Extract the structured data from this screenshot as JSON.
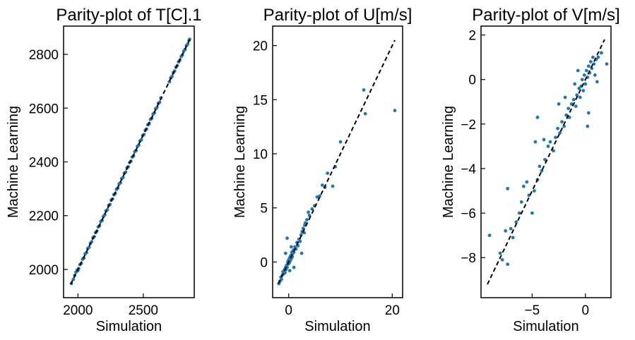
{
  "chart_data": [
    {
      "type": "scatter",
      "title": "Parity-plot of T[C].1",
      "xlabel": "Simulation",
      "ylabel": "Machine Learning",
      "xlim": [
        1890,
        2890
      ],
      "ylim": [
        1895,
        2905
      ],
      "xticks": [
        {
          "v": 2000,
          "label": "2000"
        },
        {
          "v": 2500,
          "label": "2500"
        }
      ],
      "yticks": [
        {
          "v": 2000,
          "label": "2000"
        },
        {
          "v": 2200,
          "label": "2200"
        },
        {
          "v": 2400,
          "label": "2400"
        },
        {
          "v": 2600,
          "label": "2600"
        },
        {
          "v": 2800,
          "label": "2800"
        }
      ],
      "reference_line": {
        "x": [
          1945,
          2855
        ],
        "y": [
          1945,
          2855
        ],
        "style": "dashed",
        "color": "#000000"
      },
      "marker_color": "#1f77b4",
      "points": [
        [
          1950,
          1948
        ],
        [
          1965,
          1963
        ],
        [
          1975,
          1978
        ],
        [
          1985,
          1990
        ],
        [
          1995,
          1998
        ],
        [
          2000,
          1996
        ],
        [
          2005,
          2003
        ],
        [
          2015,
          2018
        ],
        [
          2025,
          2022
        ],
        [
          2035,
          2038
        ],
        [
          2045,
          2042
        ],
        [
          2055,
          2058
        ],
        [
          2065,
          2062
        ],
        [
          2075,
          2078
        ],
        [
          2085,
          2082
        ],
        [
          2095,
          2097
        ],
        [
          2105,
          2103
        ],
        [
          2115,
          2118
        ],
        [
          2125,
          2122
        ],
        [
          2135,
          2137
        ],
        [
          2145,
          2142
        ],
        [
          2155,
          2158
        ],
        [
          2165,
          2162
        ],
        [
          2175,
          2178
        ],
        [
          2185,
          2182
        ],
        [
          2195,
          2197
        ],
        [
          2205,
          2203
        ],
        [
          2215,
          2218
        ],
        [
          2225,
          2222
        ],
        [
          2235,
          2238
        ],
        [
          2245,
          2242
        ],
        [
          2255,
          2258
        ],
        [
          2265,
          2262
        ],
        [
          2275,
          2278
        ],
        [
          2285,
          2282
        ],
        [
          2295,
          2298
        ],
        [
          2305,
          2302
        ],
        [
          2315,
          2318
        ],
        [
          2325,
          2322
        ],
        [
          2335,
          2338
        ],
        [
          2345,
          2342
        ],
        [
          2355,
          2358
        ],
        [
          2365,
          2362
        ],
        [
          2375,
          2378
        ],
        [
          2385,
          2382
        ],
        [
          2395,
          2398
        ],
        [
          2405,
          2402
        ],
        [
          2415,
          2418
        ],
        [
          2425,
          2422
        ],
        [
          2435,
          2438
        ],
        [
          2445,
          2442
        ],
        [
          2455,
          2458
        ],
        [
          2465,
          2462
        ],
        [
          2475,
          2478
        ],
        [
          2485,
          2482
        ],
        [
          2495,
          2498
        ],
        [
          2505,
          2502
        ],
        [
          2515,
          2518
        ],
        [
          2525,
          2522
        ],
        [
          2535,
          2538
        ],
        [
          2545,
          2542
        ],
        [
          2555,
          2558
        ],
        [
          2565,
          2562
        ],
        [
          2575,
          2578
        ],
        [
          2585,
          2582
        ],
        [
          2595,
          2598
        ],
        [
          2605,
          2602
        ],
        [
          2615,
          2618
        ],
        [
          2625,
          2622
        ],
        [
          2635,
          2638
        ],
        [
          2700,
          2698
        ],
        [
          2710,
          2712
        ],
        [
          2720,
          2718
        ],
        [
          2730,
          2732
        ],
        [
          2740,
          2738
        ],
        [
          2750,
          2752
        ],
        [
          2760,
          2758
        ],
        [
          2770,
          2772
        ],
        [
          2780,
          2778
        ],
        [
          2790,
          2792
        ],
        [
          2800,
          2798
        ],
        [
          2810,
          2812
        ],
        [
          2820,
          2818
        ],
        [
          2830,
          2832
        ],
        [
          2840,
          2838
        ],
        [
          2850,
          2852
        ],
        [
          2855,
          2856
        ]
      ]
    },
    {
      "type": "scatter",
      "title": "Parity-plot of U[m/s]",
      "xlabel": "Simulation",
      "ylabel": "Machine Learning",
      "xlim": [
        -3.1,
        22.0
      ],
      "ylim": [
        -3.3,
        21.8
      ],
      "xticks": [
        {
          "v": 0,
          "label": "0"
        },
        {
          "v": 20,
          "label": "20"
        }
      ],
      "yticks": [
        {
          "v": 0,
          "label": "0"
        },
        {
          "v": 5,
          "label": "5"
        },
        {
          "v": 10,
          "label": "10"
        },
        {
          "v": 15,
          "label": "15"
        },
        {
          "v": 20,
          "label": "20"
        }
      ],
      "reference_line": {
        "x": [
          -2.0,
          20.5
        ],
        "y": [
          -2.0,
          20.5
        ],
        "style": "dashed",
        "color": "#000000"
      },
      "marker_color": "#1f77b4",
      "points": [
        [
          -1.9,
          -2.0
        ],
        [
          -1.7,
          -1.8
        ],
        [
          -1.5,
          -1.4
        ],
        [
          -1.4,
          -1.6
        ],
        [
          -1.2,
          -1.2
        ],
        [
          -1.1,
          -0.9
        ],
        [
          -1.0,
          -1.1
        ],
        [
          -0.8,
          -0.7
        ],
        [
          -0.7,
          -1.0
        ],
        [
          -0.6,
          -0.5
        ],
        [
          -0.5,
          -0.7
        ],
        [
          -0.4,
          -0.3
        ],
        [
          -0.3,
          -0.5
        ],
        [
          -0.2,
          0.0
        ],
        [
          -0.1,
          -0.2
        ],
        [
          0.0,
          0.2
        ],
        [
          0.1,
          -0.1
        ],
        [
          0.2,
          0.4
        ],
        [
          0.3,
          0.1
        ],
        [
          0.4,
          0.6
        ],
        [
          0.5,
          0.3
        ],
        [
          0.6,
          0.9
        ],
        [
          0.7,
          0.5
        ],
        [
          0.8,
          0.8
        ],
        [
          0.9,
          1.1
        ],
        [
          1.0,
          0.9
        ],
        [
          1.2,
          1.4
        ],
        [
          1.4,
          1.2
        ],
        [
          1.6,
          1.8
        ],
        [
          1.8,
          1.5
        ],
        [
          2.0,
          2.1
        ],
        [
          2.2,
          1.9
        ],
        [
          2.4,
          2.5
        ],
        [
          2.6,
          2.8
        ],
        [
          2.8,
          3.1
        ],
        [
          3.0,
          2.7
        ],
        [
          3.2,
          3.6
        ],
        [
          3.5,
          3.9
        ],
        [
          3.8,
          4.6
        ],
        [
          4.0,
          4.3
        ],
        [
          4.5,
          4.9
        ],
        [
          5.0,
          5.2
        ],
        [
          5.5,
          6.0
        ],
        [
          6.0,
          6.1
        ],
        [
          6.5,
          7.1
        ],
        [
          7.0,
          6.9
        ],
        [
          7.5,
          8.2
        ],
        [
          8.5,
          7.0
        ],
        [
          9.0,
          8.8
        ],
        [
          10.0,
          11.1
        ],
        [
          14.5,
          15.9
        ],
        [
          14.8,
          13.7
        ],
        [
          20.5,
          14.0
        ],
        [
          -0.3,
          2.2
        ],
        [
          0.5,
          1.4
        ],
        [
          1.0,
          -0.5
        ],
        [
          -0.6,
          0.8
        ],
        [
          2.5,
          0.8
        ],
        [
          3.1,
          3.4
        ],
        [
          0.2,
          -0.8
        ]
      ]
    },
    {
      "type": "scatter",
      "title": "Parity-plot of V[m/s]",
      "xlabel": "Simulation",
      "ylabel": "Machine Learning",
      "xlim": [
        -9.8,
        2.4
      ],
      "ylim": [
        -9.8,
        2.4
      ],
      "xticks": [
        {
          "v": -5,
          "label": "−5"
        },
        {
          "v": 0,
          "label": "0"
        }
      ],
      "yticks": [
        {
          "v": -8,
          "label": "−8"
        },
        {
          "v": -6,
          "label": "−6"
        },
        {
          "v": -4,
          "label": "−4"
        },
        {
          "v": -2,
          "label": "−2"
        },
        {
          "v": 0,
          "label": "0"
        },
        {
          "v": 2,
          "label": "2"
        }
      ],
      "reference_line": {
        "x": [
          -9.2,
          1.8
        ],
        "y": [
          -9.2,
          1.8
        ],
        "style": "dashed",
        "color": "#000000"
      },
      "marker_color": "#1f77b4",
      "points": [
        [
          -9.0,
          -7.0
        ],
        [
          -8.0,
          -7.8
        ],
        [
          -7.8,
          -8.1
        ],
        [
          -7.3,
          -8.3
        ],
        [
          -7.5,
          -6.8
        ],
        [
          -7.3,
          -4.9
        ],
        [
          -7.0,
          -6.7
        ],
        [
          -6.8,
          -7.1
        ],
        [
          -6.5,
          -6.4
        ],
        [
          -6.2,
          -6.0
        ],
        [
          -6.0,
          -5.5
        ],
        [
          -5.8,
          -4.8
        ],
        [
          -5.5,
          -4.6
        ],
        [
          -5.3,
          -5.2
        ],
        [
          -5.0,
          -6.0
        ],
        [
          -4.8,
          -5.0
        ],
        [
          -4.5,
          -4.5
        ],
        [
          -4.3,
          -3.9
        ],
        [
          -4.1,
          -4.1
        ],
        [
          -3.8,
          -3.6
        ],
        [
          -3.5,
          -3.0
        ],
        [
          -3.3,
          -2.8
        ],
        [
          -3.0,
          -3.2
        ],
        [
          -2.8,
          -2.6
        ],
        [
          -2.6,
          -2.2
        ],
        [
          -2.4,
          -2.4
        ],
        [
          -2.2,
          -1.9
        ],
        [
          -2.0,
          -2.1
        ],
        [
          -1.8,
          -1.6
        ],
        [
          -1.6,
          -1.3
        ],
        [
          -1.5,
          -1.7
        ],
        [
          -1.3,
          -1.1
        ],
        [
          -1.1,
          -0.9
        ],
        [
          -0.9,
          -1.2
        ],
        [
          -0.8,
          -0.7
        ],
        [
          -0.6,
          -0.4
        ],
        [
          -0.5,
          -0.8
        ],
        [
          -0.4,
          -0.3
        ],
        [
          -0.3,
          0.0
        ],
        [
          -0.2,
          -0.5
        ],
        [
          -0.1,
          0.2
        ],
        [
          0.0,
          -0.2
        ],
        [
          0.1,
          0.4
        ],
        [
          0.2,
          0.1
        ],
        [
          0.3,
          0.6
        ],
        [
          0.4,
          0.3
        ],
        [
          0.5,
          0.8
        ],
        [
          0.6,
          0.5
        ],
        [
          0.7,
          1.0
        ],
        [
          0.8,
          0.7
        ],
        [
          1.0,
          0.9
        ],
        [
          1.2,
          1.0
        ],
        [
          1.5,
          1.2
        ],
        [
          2.0,
          0.7
        ],
        [
          0.2,
          -2.1
        ],
        [
          -1.0,
          -0.2
        ],
        [
          0.3,
          -1.5
        ],
        [
          -4.7,
          -2.8
        ],
        [
          -4.5,
          -1.7
        ],
        [
          -3.9,
          -2.7
        ],
        [
          -2.5,
          -1.1
        ],
        [
          -1.9,
          -0.8
        ],
        [
          0.9,
          0.2
        ],
        [
          1.1,
          -0.1
        ],
        [
          -0.7,
          0.4
        ]
      ]
    }
  ]
}
